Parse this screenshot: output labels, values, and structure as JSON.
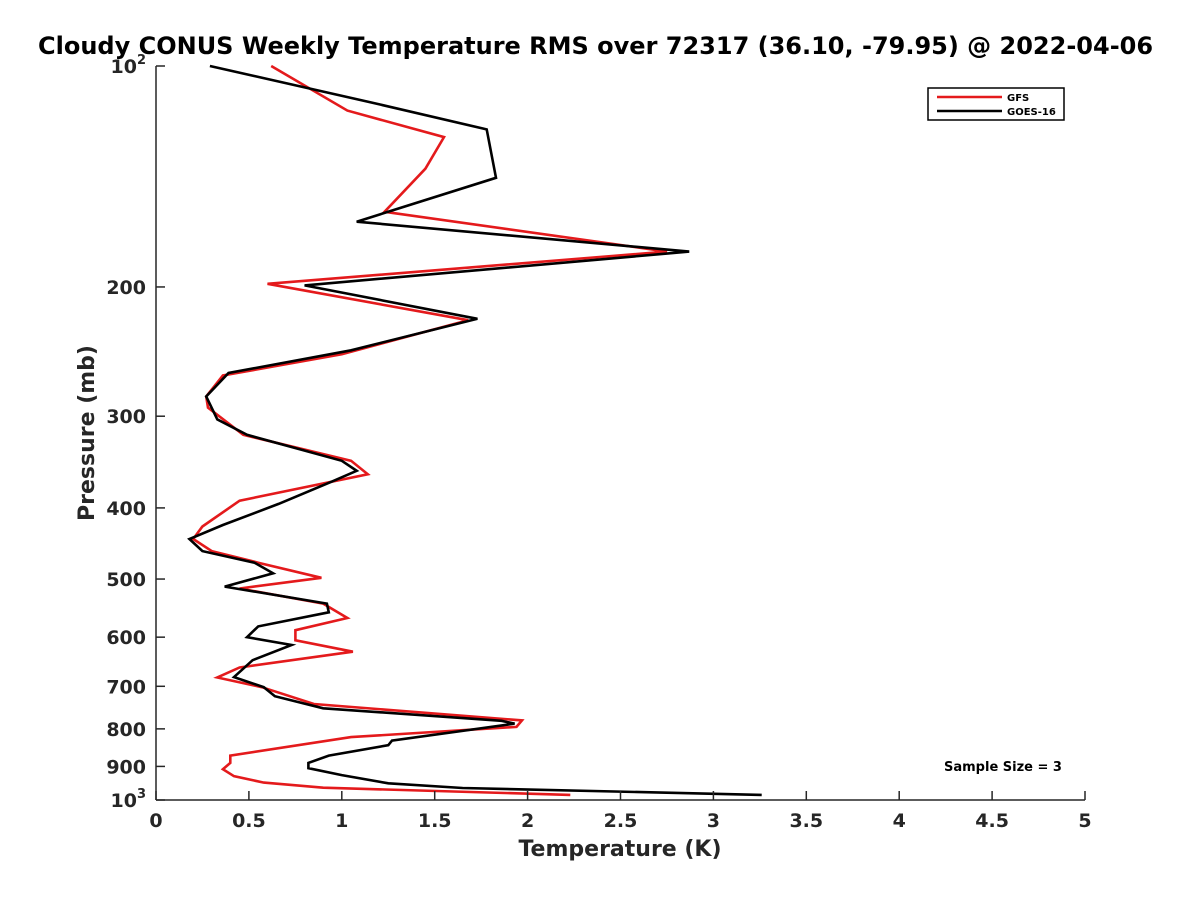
{
  "chart_data": {
    "type": "line",
    "title": "Cloudy CONUS Weekly Temperature RMS over 72317 (36.10, -79.95) @ 2022-04-06",
    "xlabel": "Temperature (K)",
    "ylabel": "Pressure (mb)",
    "xlim": [
      0,
      5
    ],
    "ylim": [
      100,
      1000
    ],
    "y_scale": "log",
    "y_reversed": true,
    "x_ticks": [
      "0",
      "0.5",
      "1",
      "1.5",
      "2",
      "2.5",
      "3",
      "3.5",
      "4",
      "4.5",
      "5"
    ],
    "y_ticks": [
      {
        "value": 100,
        "base": "10",
        "exp": "2"
      },
      {
        "value": 200,
        "label": "200"
      },
      {
        "value": 300,
        "label": "300"
      },
      {
        "value": 400,
        "label": "400"
      },
      {
        "value": 500,
        "label": "500"
      },
      {
        "value": 600,
        "label": "600"
      },
      {
        "value": 700,
        "label": "700"
      },
      {
        "value": 800,
        "label": "800"
      },
      {
        "value": 900,
        "label": "900"
      },
      {
        "value": 1000,
        "base": "10",
        "exp": "3"
      }
    ],
    "grid": false,
    "legend_position": "top-right",
    "annotation": "Sample Size = 3",
    "series": [
      {
        "name": "GFS",
        "color": "#e41a1c",
        "points": [
          [
            0.62,
            100
          ],
          [
            1.03,
            115
          ],
          [
            1.55,
            125
          ],
          [
            1.45,
            138
          ],
          [
            1.23,
            158
          ],
          [
            2.75,
            179
          ],
          [
            0.6,
            198
          ],
          [
            1.68,
            222
          ],
          [
            1.0,
            247
          ],
          [
            0.36,
            264
          ],
          [
            0.27,
            282
          ],
          [
            0.28,
            292
          ],
          [
            0.47,
            318
          ],
          [
            1.05,
            345
          ],
          [
            1.14,
            360
          ],
          [
            0.45,
            391
          ],
          [
            0.25,
            424
          ],
          [
            0.2,
            441
          ],
          [
            0.3,
            458
          ],
          [
            0.55,
            475
          ],
          [
            0.89,
            498
          ],
          [
            0.45,
            515
          ],
          [
            0.9,
            540
          ],
          [
            1.03,
            565
          ],
          [
            0.75,
            587
          ],
          [
            0.75,
            606
          ],
          [
            1.06,
            628
          ],
          [
            0.45,
            660
          ],
          [
            0.33,
            681
          ],
          [
            0.57,
            702
          ],
          [
            0.85,
            740
          ],
          [
            1.97,
            779
          ],
          [
            1.94,
            795
          ],
          [
            1.05,
            821
          ],
          [
            0.4,
            870
          ],
          [
            0.4,
            890
          ],
          [
            0.36,
            908
          ],
          [
            0.42,
            928
          ],
          [
            0.58,
            947
          ],
          [
            0.9,
            962
          ],
          [
            2.23,
            984
          ]
        ]
      },
      {
        "name": "GOES-16",
        "color": "#000000",
        "points": [
          [
            0.29,
            100
          ],
          [
            1.15,
            112
          ],
          [
            1.78,
            122
          ],
          [
            1.83,
            142
          ],
          [
            1.08,
            163
          ],
          [
            2.87,
            179
          ],
          [
            0.8,
            199
          ],
          [
            1.73,
            221
          ],
          [
            1.05,
            244
          ],
          [
            0.39,
            262
          ],
          [
            0.27,
            282
          ],
          [
            0.33,
            303
          ],
          [
            0.49,
            318
          ],
          [
            1.0,
            345
          ],
          [
            1.08,
            356
          ],
          [
            0.95,
            368
          ],
          [
            0.66,
            395
          ],
          [
            0.36,
            422
          ],
          [
            0.18,
            441
          ],
          [
            0.25,
            458
          ],
          [
            0.53,
            475
          ],
          [
            0.63,
            491
          ],
          [
            0.37,
            512
          ],
          [
            0.92,
            540
          ],
          [
            0.93,
            555
          ],
          [
            0.55,
            580
          ],
          [
            0.49,
            600
          ],
          [
            0.73,
            615
          ],
          [
            0.52,
            645
          ],
          [
            0.42,
            680
          ],
          [
            0.58,
            702
          ],
          [
            0.64,
            722
          ],
          [
            0.9,
            750
          ],
          [
            1.86,
            780
          ],
          [
            1.93,
            787
          ],
          [
            1.27,
            830
          ],
          [
            1.25,
            842
          ],
          [
            0.93,
            870
          ],
          [
            0.82,
            890
          ],
          [
            0.82,
            905
          ],
          [
            1.0,
            925
          ],
          [
            1.25,
            949
          ],
          [
            1.65,
            963
          ],
          [
            3.26,
            984
          ]
        ]
      }
    ]
  }
}
